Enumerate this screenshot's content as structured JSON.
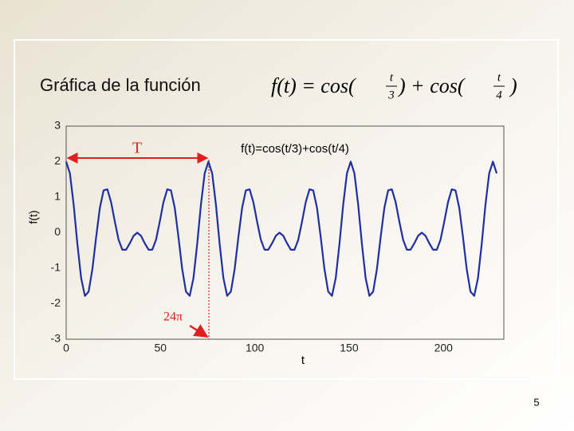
{
  "chart_data": {
    "type": "line",
    "title": "Gráfica de la función",
    "formula": {
      "lhs": "f(t) = cos(",
      "num1": "t",
      "den1": "3",
      "mid": ") + cos(",
      "num2": "t",
      "den2": "4",
      "end": ")"
    },
    "xlabel": "t",
    "ylabel": "f(t)",
    "annotations": {
      "period": "T",
      "period_value": "24π"
    },
    "page_number": "5",
    "xlim": [
      0,
      232
    ],
    "ylim": [
      -3,
      3
    ],
    "xticks": [
      0,
      50,
      100,
      150,
      200
    ],
    "yticks": [
      -3,
      -2,
      -1,
      0,
      1,
      2,
      3
    ],
    "grid": false,
    "x": [
      0,
      1.98,
      3.97,
      5.95,
      7.94,
      9.92,
      11.91,
      13.89,
      15.88,
      17.86,
      19.84,
      21.83,
      23.81,
      25.8,
      27.78,
      29.77,
      31.75,
      33.73,
      35.72,
      37.7,
      39.69,
      41.67,
      43.66,
      45.64,
      47.63,
      49.61,
      51.59,
      53.58,
      55.56,
      57.55,
      59.53,
      61.52,
      63.5,
      65.49,
      67.47,
      69.45,
      71.44,
      73.42,
      75.41,
      77.39,
      79.38,
      81.36,
      83.35,
      85.33,
      87.31,
      89.3,
      91.28,
      93.27,
      95.25,
      97.24,
      99.22,
      101.2,
      103.19,
      105.17,
      107.16,
      109.14,
      111.13,
      113.11,
      115.1,
      117.08,
      119.06,
      121.05,
      123.03,
      125.02,
      127.0,
      128.99,
      130.97,
      132.96,
      134.94,
      136.92,
      138.91,
      140.89,
      142.88,
      144.86,
      146.85,
      148.83,
      150.82,
      152.8,
      154.78,
      156.77,
      158.75,
      160.74,
      162.72,
      164.71,
      166.69,
      168.67,
      170.66,
      172.64,
      174.63,
      176.61,
      178.6,
      180.58,
      182.57,
      184.55,
      186.53,
      188.52,
      190.5,
      192.49,
      194.47,
      196.46,
      198.44,
      200.42,
      202.41,
      204.39,
      206.38,
      208.36,
      210.35,
      212.33,
      214.32,
      216.3,
      218.28,
      220.27,
      222.25,
      224.24,
      226.22,
      228.21
    ],
    "series": [
      {
        "name": "f(t)=cos(t/3)+cos(t/4)",
        "color": "#1f2fa0",
        "values": [
          2,
          1.67,
          0.79,
          -0.32,
          -1.28,
          -1.78,
          -1.66,
          -1.03,
          -0.13,
          0.7,
          1.19,
          1.22,
          0.86,
          0.31,
          -0.2,
          -0.48,
          -0.48,
          -0.3,
          -0.09,
          0,
          -0.09,
          -0.3,
          -0.48,
          -0.48,
          -0.2,
          0.31,
          0.86,
          1.22,
          1.19,
          0.7,
          -0.13,
          -1.03,
          -1.66,
          -1.78,
          -1.28,
          -0.32,
          0.79,
          1.67,
          2,
          1.67,
          0.79,
          -0.32,
          -1.28,
          -1.78,
          -1.66,
          -1.03,
          -0.13,
          0.7,
          1.19,
          1.22,
          0.86,
          0.31,
          -0.2,
          -0.48,
          -0.48,
          -0.3,
          -0.09,
          0,
          -0.09,
          -0.3,
          -0.48,
          -0.48,
          -0.2,
          0.31,
          0.86,
          1.22,
          1.19,
          0.7,
          -0.13,
          -1.03,
          -1.66,
          -1.78,
          -1.28,
          -0.32,
          0.79,
          1.67,
          2,
          1.67,
          0.79,
          -0.32,
          -1.28,
          -1.78,
          -1.66,
          -1.03,
          -0.13,
          0.7,
          1.19,
          1.22,
          0.86,
          0.31,
          -0.2,
          -0.48,
          -0.48,
          -0.3,
          -0.09,
          0,
          -0.09,
          -0.3,
          -0.48,
          -0.48,
          -0.2,
          0.31,
          0.86,
          1.22,
          1.19,
          0.7,
          -0.13,
          -1.03,
          -1.66,
          -1.78,
          -1.28,
          -0.32,
          0.79,
          1.67,
          2,
          1.67
        ]
      }
    ]
  }
}
